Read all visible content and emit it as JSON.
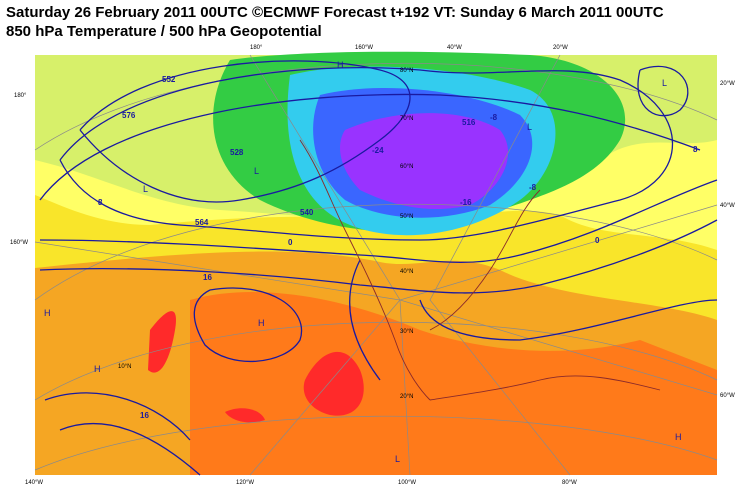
{
  "header": {
    "title": "Saturday 26 February 2011 00UTC ©ECMWF Forecast t+192 VT: Sunday 6 March 2011 00UTC",
    "subtitle": "850 hPa Temperature / 500 hPa Geopotential"
  },
  "graticule_labels": {
    "top": [
      "180°",
      "160°W",
      "40°W",
      "20°W"
    ],
    "left": [
      "180°",
      "160°W"
    ],
    "right": [
      "20°W",
      "40°W",
      "60°W"
    ],
    "bottom": [
      "140°W",
      "120°W",
      "100°W",
      "80°W"
    ]
  },
  "latitude_labels": [
    "80°N",
    "70°N",
    "60°N",
    "50°N",
    "40°N",
    "30°N",
    "20°N",
    "10°N"
  ],
  "contour_labels": [
    "552",
    "576",
    "564",
    "540",
    "528",
    "516",
    "0",
    "8",
    "16",
    "-8",
    "-16",
    "-24",
    "8",
    "0",
    "16",
    "-8"
  ],
  "pressure_centers": [
    "H",
    "L",
    "L",
    "H",
    "H",
    "L",
    "L",
    "H",
    "H",
    "L"
  ]
}
